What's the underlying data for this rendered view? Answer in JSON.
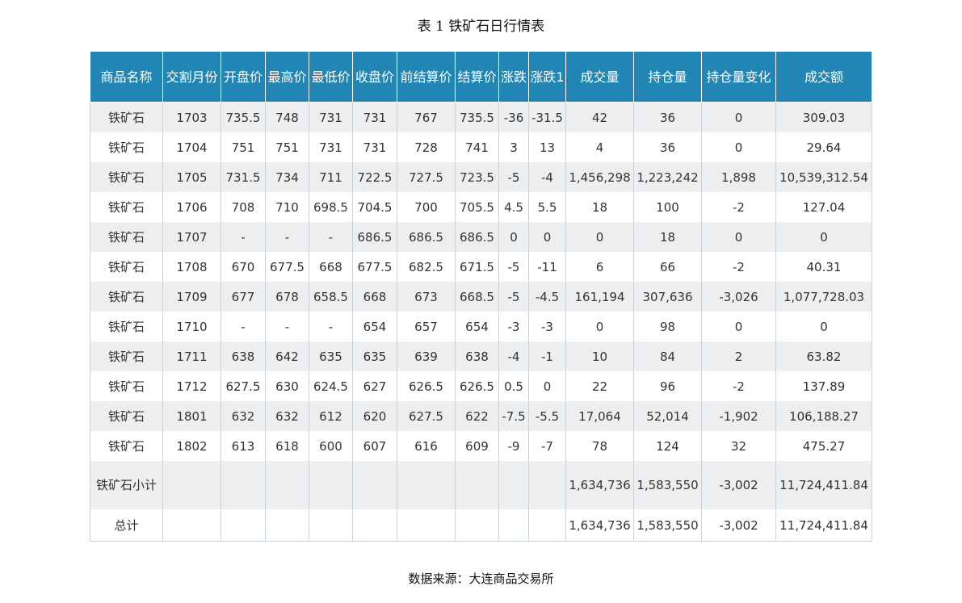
{
  "title": "表 1  铁矿石日行情表",
  "headers": [
    "商品名称",
    "交割月份",
    "开盘价",
    "最高价",
    "最低价",
    "收盘价",
    "前结算价",
    "结算价",
    "涨跌",
    "涨跌1",
    "成交量",
    "持仓量",
    "持仓量变化",
    "成交额"
  ],
  "rows": [
    [
      "铁矿石",
      "1703",
      "735.5",
      "748",
      "731",
      "731",
      "767",
      "735.5",
      "-36",
      "-31.5",
      "42",
      "36",
      "0",
      "309.03"
    ],
    [
      "铁矿石",
      "1704",
      "751",
      "751",
      "731",
      "731",
      "728",
      "741",
      "3",
      "13",
      "4",
      "36",
      "0",
      "29.64"
    ],
    [
      "铁矿石",
      "1705",
      "731.5",
      "734",
      "711",
      "722.5",
      "727.5",
      "723.5",
      "-5",
      "-4",
      "1,456,298",
      "1,223,242",
      "1,898",
      "10,539,312.54"
    ],
    [
      "铁矿石",
      "1706",
      "708",
      "710",
      "698.5",
      "704.5",
      "700",
      "705.5",
      "4.5",
      "5.5",
      "18",
      "100",
      "-2",
      "127.04"
    ],
    [
      "铁矿石",
      "1707",
      "-",
      "-",
      "-",
      "686.5",
      "686.5",
      "686.5",
      "0",
      "0",
      "0",
      "18",
      "0",
      "0"
    ],
    [
      "铁矿石",
      "1708",
      "670",
      "677.5",
      "668",
      "677.5",
      "682.5",
      "671.5",
      "-5",
      "-11",
      "6",
      "66",
      "-2",
      "40.31"
    ],
    [
      "铁矿石",
      "1709",
      "677",
      "678",
      "658.5",
      "668",
      "673",
      "668.5",
      "-5",
      "-4.5",
      "161,194",
      "307,636",
      "-3,026",
      "1,077,728.03"
    ],
    [
      "铁矿石",
      "1710",
      "-",
      "-",
      "-",
      "654",
      "657",
      "654",
      "-3",
      "-3",
      "0",
      "98",
      "0",
      "0"
    ],
    [
      "铁矿石",
      "1711",
      "638",
      "642",
      "635",
      "635",
      "639",
      "638",
      "-4",
      "-1",
      "10",
      "84",
      "2",
      "63.82"
    ],
    [
      "铁矿石",
      "1712",
      "627.5",
      "630",
      "624.5",
      "627",
      "626.5",
      "626.5",
      "0.5",
      "0",
      "22",
      "96",
      "-2",
      "137.89"
    ],
    [
      "铁矿石",
      "1801",
      "632",
      "632",
      "612",
      "620",
      "627.5",
      "622",
      "-7.5",
      "-5.5",
      "17,064",
      "52,014",
      "-1,902",
      "106,188.27"
    ],
    [
      "铁矿石",
      "1802",
      "613",
      "618",
      "600",
      "607",
      "616",
      "609",
      "-9",
      "-7",
      "78",
      "124",
      "32",
      "475.27"
    ],
    [
      "铁矿石小计",
      "",
      "",
      "",
      "",
      "",
      "",
      "",
      "",
      "",
      "1,634,736",
      "1,583,550",
      "-3,002",
      "11,724,411.84"
    ],
    [
      "总计",
      "",
      "",
      "",
      "",
      "",
      "",
      "",
      "",
      "",
      "1,634,736",
      "1,583,550",
      "-3,002",
      "11,724,411.84"
    ]
  ],
  "source": "数据来源：大连商品交易所",
  "colors": {
    "header_bg": "#2186b4",
    "header_text": "#ffffff",
    "row_stripe": "#eceef0"
  }
}
